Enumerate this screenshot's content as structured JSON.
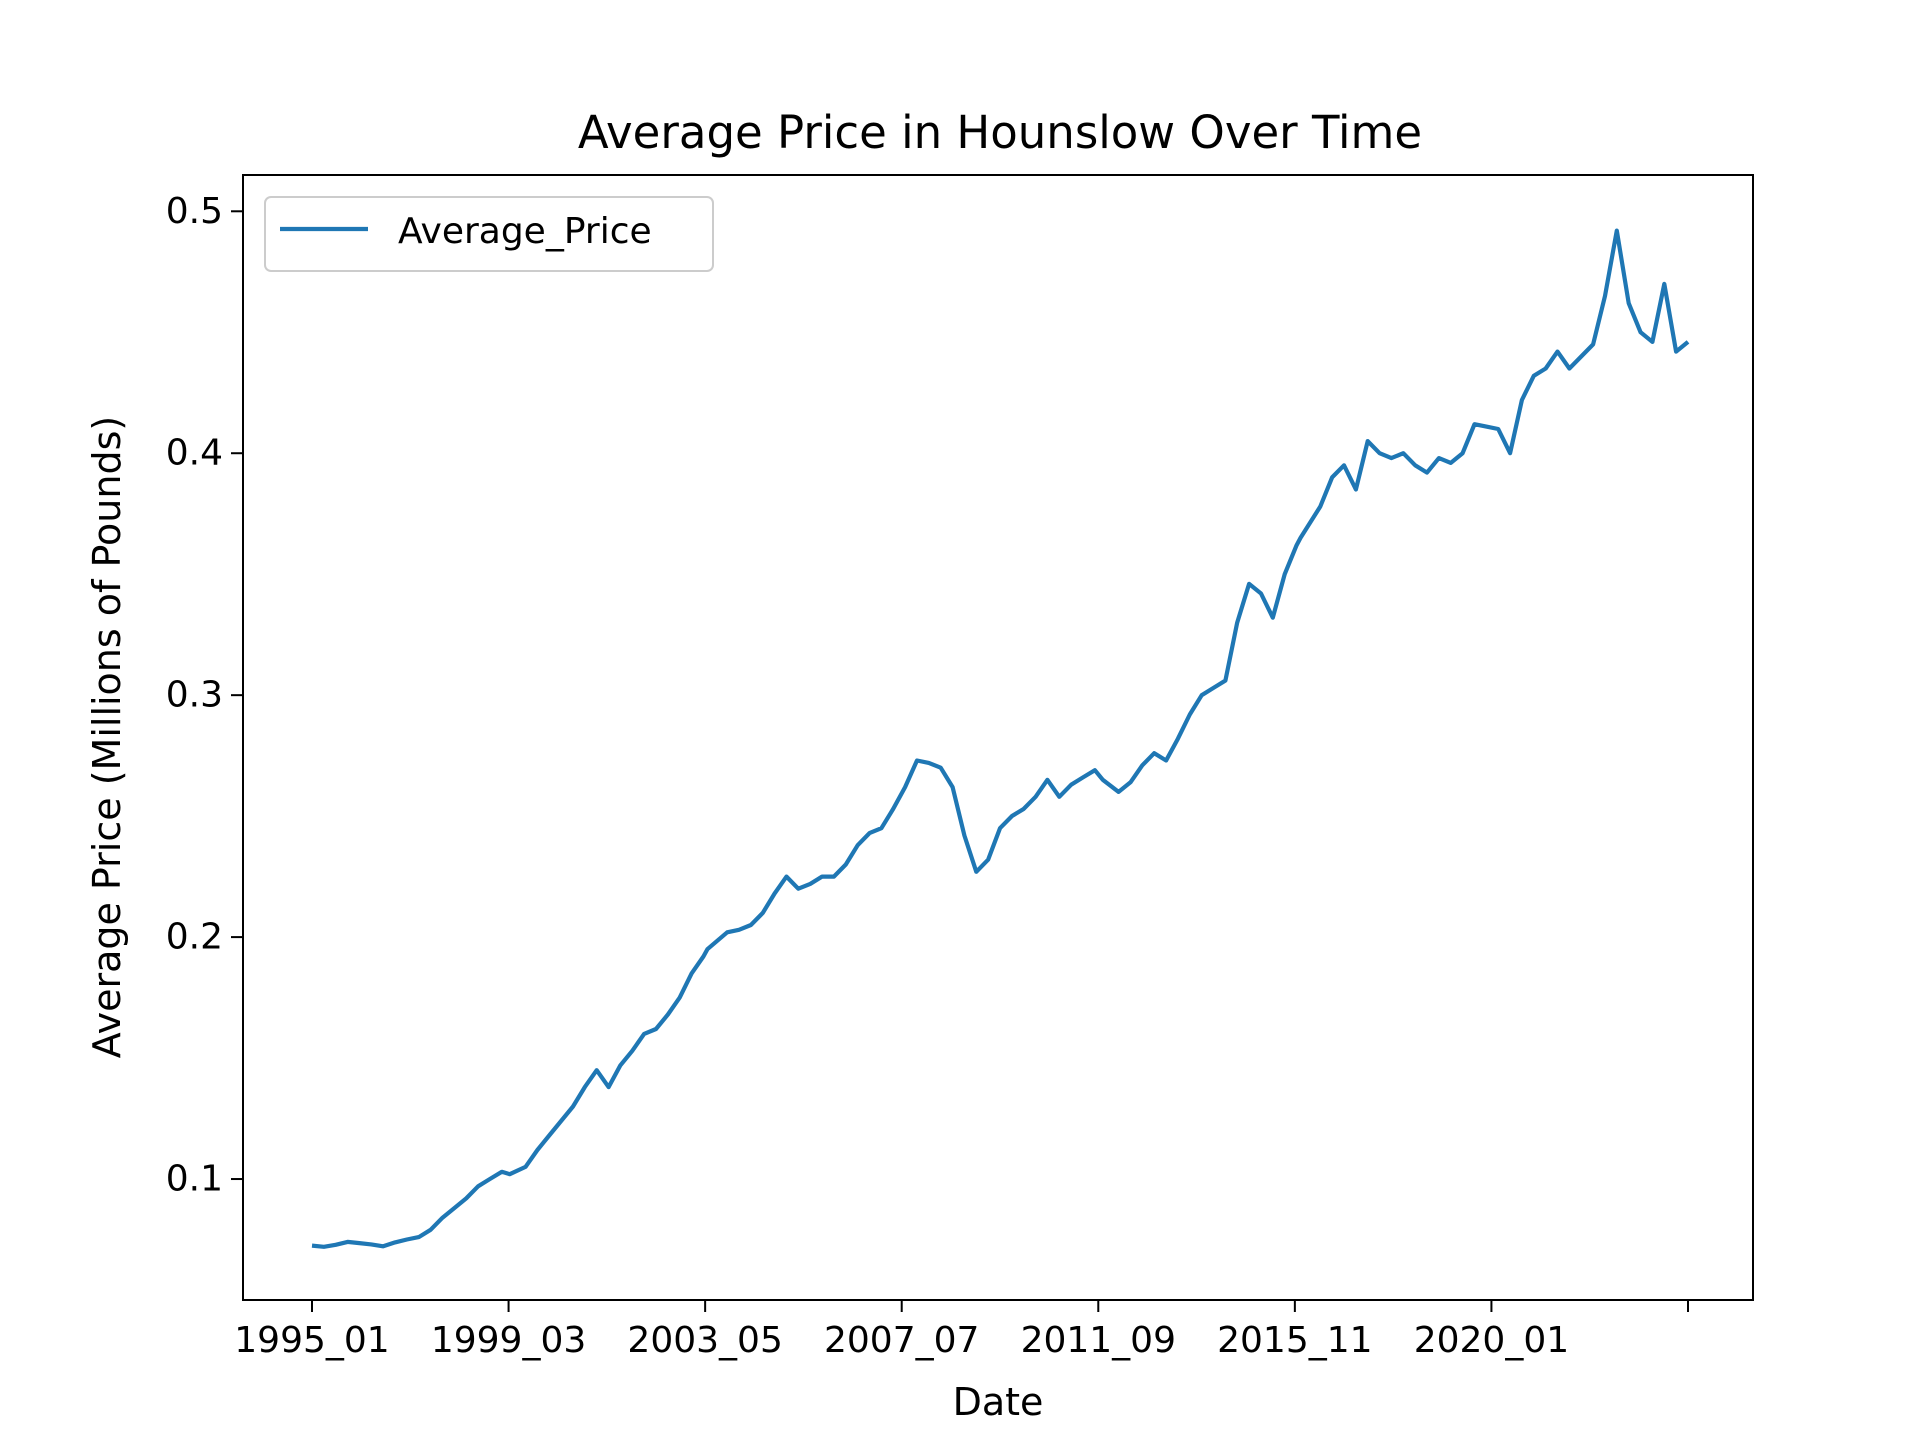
{
  "chart_data": {
    "type": "line",
    "title": "Average Price in Hounslow Over Time",
    "xlabel": "Date",
    "ylabel": "Average Price (Millions of Pounds)",
    "ylim": [
      0.05,
      0.515
    ],
    "yticks": [
      0.1,
      0.2,
      0.3,
      0.4,
      0.5
    ],
    "ytick_labels": [
      "0.1",
      "0.2",
      "0.3",
      "0.4",
      "0.5"
    ],
    "x_tick_labels": [
      "1995_01",
      "1999_03",
      "2003_05",
      "2007_07",
      "2011_09",
      "2015_11",
      "2020_01",
      ""
    ],
    "grid": false,
    "legend_position": "upper-left",
    "series": [
      {
        "name": "Average_Price",
        "color": "#1f77b4",
        "points": [
          [
            "1995_01",
            0.0725
          ],
          [
            "1995_04",
            0.072
          ],
          [
            "1995_07",
            0.0728
          ],
          [
            "1995_10",
            0.074
          ],
          [
            "1996_01",
            0.0735
          ],
          [
            "1996_04",
            0.073
          ],
          [
            "1996_07",
            0.0722
          ],
          [
            "1996_10",
            0.0738
          ],
          [
            "1997_01",
            0.075
          ],
          [
            "1997_04",
            0.076
          ],
          [
            "1997_07",
            0.079
          ],
          [
            "1997_10",
            0.084
          ],
          [
            "1998_01",
            0.088
          ],
          [
            "1998_04",
            0.092
          ],
          [
            "1998_07",
            0.097
          ],
          [
            "1998_10",
            0.1
          ],
          [
            "1999_01",
            0.103
          ],
          [
            "1999_03",
            0.102
          ],
          [
            "1999_07",
            0.105
          ],
          [
            "1999_10",
            0.112
          ],
          [
            "2000_01",
            0.118
          ],
          [
            "2000_04",
            0.124
          ],
          [
            "2000_07",
            0.13
          ],
          [
            "2000_10",
            0.138
          ],
          [
            "2001_01",
            0.145
          ],
          [
            "2001_04",
            0.138
          ],
          [
            "2001_07",
            0.147
          ],
          [
            "2001_10",
            0.153
          ],
          [
            "2002_01",
            0.16
          ],
          [
            "2002_04",
            0.162
          ],
          [
            "2002_07",
            0.168
          ],
          [
            "2002_10",
            0.175
          ],
          [
            "2003_01",
            0.185
          ],
          [
            "2003_04",
            0.192
          ],
          [
            "2003_05",
            0.195
          ],
          [
            "2003_10",
            0.202
          ],
          [
            "2004_01",
            0.203
          ],
          [
            "2004_04",
            0.205
          ],
          [
            "2004_07",
            0.21
          ],
          [
            "2004_10",
            0.218
          ],
          [
            "2005_01",
            0.225
          ],
          [
            "2005_04",
            0.22
          ],
          [
            "2005_07",
            0.222
          ],
          [
            "2005_10",
            0.225
          ],
          [
            "2006_01",
            0.225
          ],
          [
            "2006_04",
            0.23
          ],
          [
            "2006_07",
            0.238
          ],
          [
            "2006_10",
            0.243
          ],
          [
            "2007_01",
            0.245
          ],
          [
            "2007_04",
            0.253
          ],
          [
            "2007_07",
            0.262
          ],
          [
            "2007_10",
            0.273
          ],
          [
            "2008_01",
            0.272
          ],
          [
            "2008_04",
            0.27
          ],
          [
            "2008_07",
            0.262
          ],
          [
            "2008_10",
            0.242
          ],
          [
            "2009_01",
            0.227
          ],
          [
            "2009_04",
            0.232
          ],
          [
            "2009_07",
            0.245
          ],
          [
            "2009_10",
            0.25
          ],
          [
            "2010_01",
            0.253
          ],
          [
            "2010_04",
            0.258
          ],
          [
            "2010_07",
            0.265
          ],
          [
            "2010_10",
            0.258
          ],
          [
            "2011_01",
            0.263
          ],
          [
            "2011_04",
            0.266
          ],
          [
            "2011_07",
            0.269
          ],
          [
            "2011_09",
            0.265
          ],
          [
            "2012_01",
            0.26
          ],
          [
            "2012_04",
            0.264
          ],
          [
            "2012_07",
            0.271
          ],
          [
            "2012_10",
            0.276
          ],
          [
            "2013_01",
            0.273
          ],
          [
            "2013_04",
            0.282
          ],
          [
            "2013_07",
            0.292
          ],
          [
            "2013_10",
            0.3
          ],
          [
            "2014_01",
            0.303
          ],
          [
            "2014_04",
            0.306
          ],
          [
            "2014_07",
            0.33
          ],
          [
            "2014_10",
            0.346
          ],
          [
            "2015_01",
            0.342
          ],
          [
            "2015_04",
            0.332
          ],
          [
            "2015_07",
            0.35
          ],
          [
            "2015_10",
            0.362
          ],
          [
            "2015_11",
            0.365
          ],
          [
            "2016_04",
            0.378
          ],
          [
            "2016_07",
            0.39
          ],
          [
            "2016_10",
            0.395
          ],
          [
            "2017_01",
            0.385
          ],
          [
            "2017_04",
            0.405
          ],
          [
            "2017_07",
            0.4
          ],
          [
            "2017_10",
            0.398
          ],
          [
            "2018_01",
            0.4
          ],
          [
            "2018_04",
            0.395
          ],
          [
            "2018_07",
            0.392
          ],
          [
            "2018_10",
            0.398
          ],
          [
            "2019_01",
            0.396
          ],
          [
            "2019_04",
            0.4
          ],
          [
            "2019_07",
            0.412
          ],
          [
            "2019_10",
            0.411
          ],
          [
            "2020_01",
            0.41
          ],
          [
            "2020_04",
            0.4
          ],
          [
            "2020_07",
            0.422
          ],
          [
            "2020_10",
            0.432
          ],
          [
            "2021_01",
            0.435
          ],
          [
            "2021_04",
            0.442
          ],
          [
            "2021_07",
            0.435
          ],
          [
            "2021_10",
            0.44
          ],
          [
            "2022_01",
            0.445
          ],
          [
            "2022_04",
            0.465
          ],
          [
            "2022_07",
            0.492
          ],
          [
            "2022_10",
            0.462
          ],
          [
            "2023_01",
            0.45
          ],
          [
            "2023_04",
            0.446
          ],
          [
            "2023_07",
            0.47
          ],
          [
            "2023_10",
            0.442
          ],
          [
            "2024_01",
            0.446
          ]
        ]
      }
    ]
  }
}
